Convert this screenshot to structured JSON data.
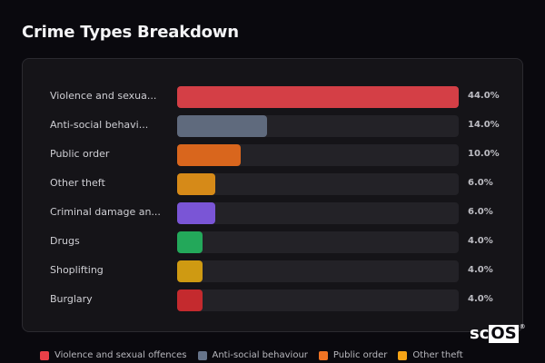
{
  "header": {
    "title": "Crime Types Breakdown"
  },
  "chart_data": {
    "type": "bar",
    "orientation": "horizontal",
    "title": "Crime Types Breakdown",
    "categories": [
      "Violence and sexual offences",
      "Anti-social behaviour",
      "Public order",
      "Other theft",
      "Criminal damage and arson",
      "Drugs",
      "Shoplifting",
      "Burglary"
    ],
    "display_labels": [
      "Violence and sexua...",
      "Anti-social behavi...",
      "Public order",
      "Other theft",
      "Criminal damage an...",
      "Drugs",
      "Shoplifting",
      "Burglary"
    ],
    "values": [
      44.0,
      14.0,
      10.0,
      6.0,
      6.0,
      4.0,
      4.0,
      4.0
    ],
    "value_labels": [
      "44.0%",
      "14.0%",
      "10.0%",
      "6.0%",
      "6.0%",
      "4.0%",
      "4.0%",
      "4.0%"
    ],
    "colors": [
      "#d43f46",
      "#5f6a7d",
      "#d9661d",
      "#d68a18",
      "#7a55d6",
      "#23a85a",
      "#cf9a12",
      "#c42a2e"
    ],
    "unit": "%",
    "xlim": [
      0,
      44
    ],
    "grid": false,
    "legend_position": "bottom"
  },
  "rows": [
    {
      "label": "Violence and sexua...",
      "value": "44.0%",
      "pct": 100,
      "color": "#d43f46"
    },
    {
      "label": "Anti-social behavi...",
      "value": "14.0%",
      "pct": 31.8,
      "color": "#5f6a7d"
    },
    {
      "label": "Public order",
      "value": "10.0%",
      "pct": 22.7,
      "color": "#d9661d"
    },
    {
      "label": "Other theft",
      "value": "6.0%",
      "pct": 13.6,
      "color": "#d68a18"
    },
    {
      "label": "Criminal damage an...",
      "value": "6.0%",
      "pct": 13.6,
      "color": "#7a55d6"
    },
    {
      "label": "Drugs",
      "value": "4.0%",
      "pct": 9.1,
      "color": "#23a85a"
    },
    {
      "label": "Shoplifting",
      "value": "4.0%",
      "pct": 9.1,
      "color": "#cf9a12"
    },
    {
      "label": "Burglary",
      "value": "4.0%",
      "pct": 9.1,
      "color": "#c42a2e"
    }
  ],
  "legend": [
    {
      "label": "Violence and sexual offences",
      "color": "#ea4048"
    },
    {
      "label": "Anti-social behaviour",
      "color": "#66748a"
    },
    {
      "label": "Public order",
      "color": "#f07424"
    },
    {
      "label": "Other theft",
      "color": "#f5a316"
    }
  ],
  "watermark": {
    "sc": "sc",
    "os": "OS",
    "reg": "®"
  }
}
